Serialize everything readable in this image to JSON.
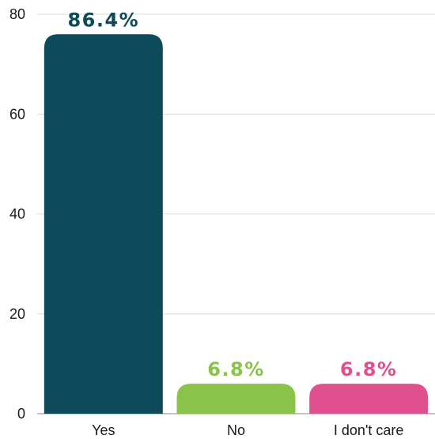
{
  "chart_data": {
    "type": "bar",
    "categories": [
      "Yes",
      "No",
      "I don't care"
    ],
    "values": [
      76,
      6,
      6
    ],
    "data_labels": [
      "86.4%",
      "6.8%",
      "6.8%"
    ],
    "colors": [
      "#0d4a5a",
      "#8bc34a",
      "#e0508f"
    ],
    "title": "",
    "xlabel": "",
    "ylabel": "",
    "ylim": [
      0,
      80
    ],
    "yticks": [
      0,
      20,
      40,
      60,
      80
    ],
    "grid": true,
    "legend": "none"
  }
}
